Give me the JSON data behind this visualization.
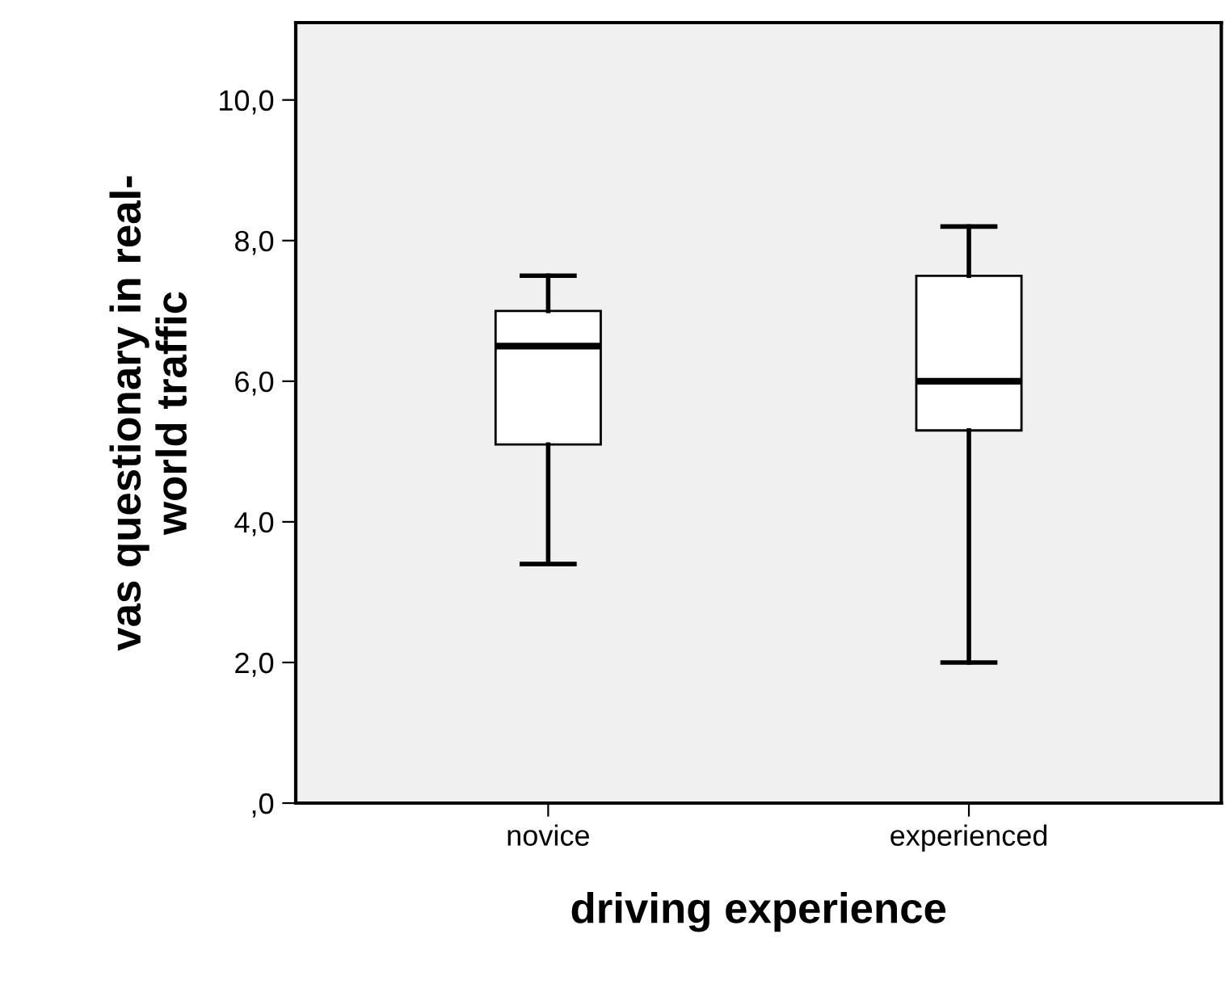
{
  "chart_data": {
    "type": "box",
    "xlabel": "driving experience",
    "ylabel": "vas questionary in real-\nworld traffic",
    "categories": [
      "novice",
      "experienced"
    ],
    "boxes": [
      {
        "low": 3.4,
        "q1": 5.1,
        "median": 6.5,
        "q3": 7.0,
        "high": 7.5
      },
      {
        "low": 2.0,
        "q1": 5.3,
        "median": 6.0,
        "q3": 7.5,
        "high": 8.2
      }
    ],
    "ylim": [
      0,
      11.1
    ],
    "yticks": [
      {
        "value": 0,
        "label": ",0"
      },
      {
        "value": 2,
        "label": "2,0"
      },
      {
        "value": 4,
        "label": "4,0"
      },
      {
        "value": 6,
        "label": "6,0"
      },
      {
        "value": 8,
        "label": "8,0"
      },
      {
        "value": 10,
        "label": "10,0"
      }
    ],
    "grid": false
  }
}
